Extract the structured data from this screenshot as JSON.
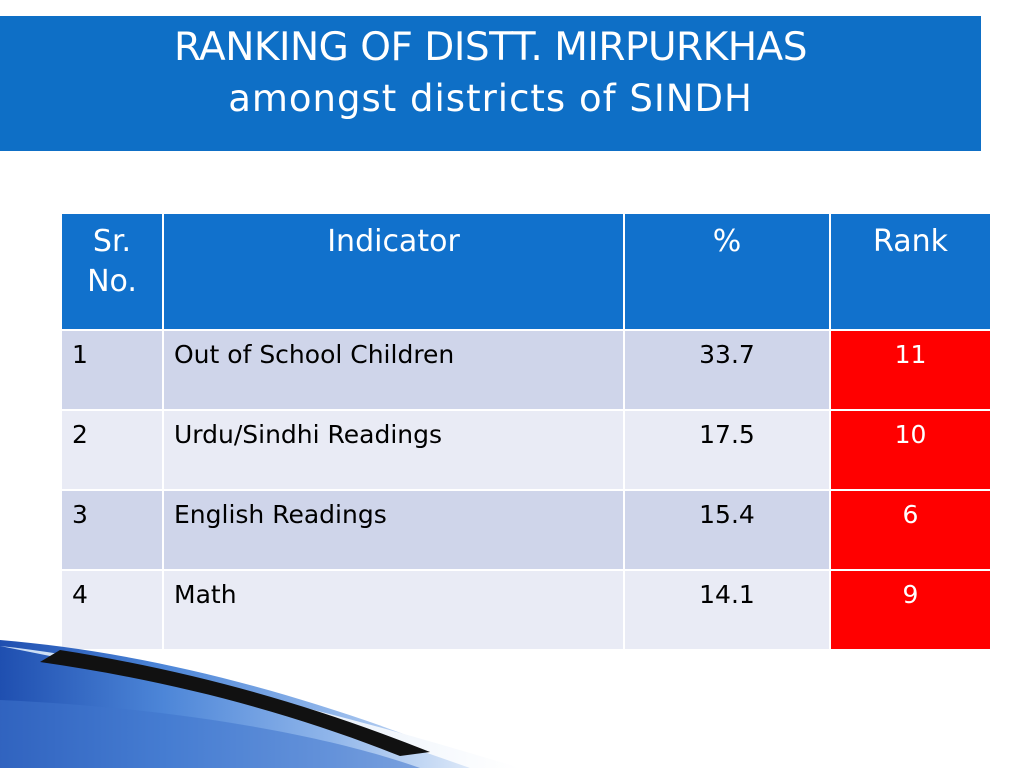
{
  "title": {
    "line1": "RANKING OF DISTT. MIRPURKHAS",
    "line2": "amongst districts of SINDH"
  },
  "table": {
    "headers": {
      "sr_no": "Sr. No.",
      "indicator": "Indicator",
      "percent": "%",
      "rank": "Rank"
    },
    "rows": [
      {
        "sr": "1",
        "indicator": "Out of School Children",
        "percent": "33.7",
        "rank": "11"
      },
      {
        "sr": "2",
        "indicator": "Urdu/Sindhi Readings",
        "percent": "17.5",
        "rank": "10"
      },
      {
        "sr": "3",
        "indicator": "English Readings",
        "percent": "15.4",
        "rank": "6"
      },
      {
        "sr": "4",
        "indicator": "Math",
        "percent": "14.1",
        "rank": "9"
      }
    ]
  },
  "colors": {
    "title_band": "#0e6fc6",
    "header_fill": "#1171cc",
    "row_odd": "#cfd5ea",
    "row_even": "#e9ebf5",
    "rank_highlight": "#ff0000"
  }
}
